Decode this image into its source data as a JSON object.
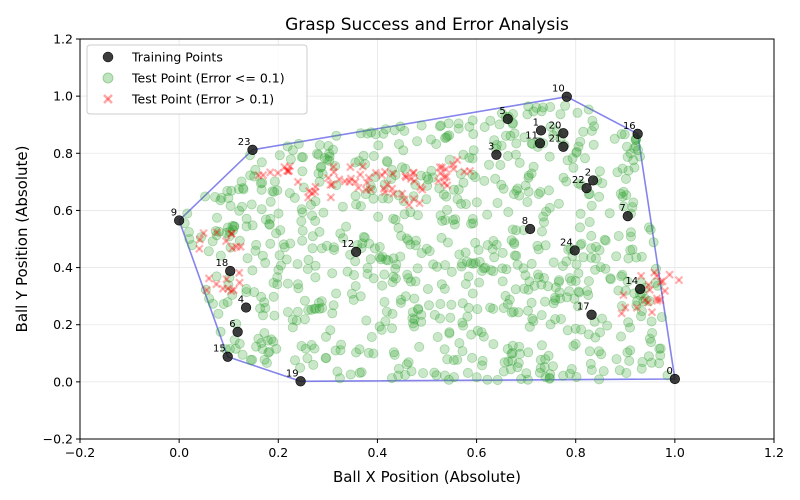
{
  "chart_data": {
    "type": "scatter",
    "title": "Grasp Success and Error Analysis",
    "xlabel": "Ball X Position (Absolute)",
    "ylabel": "Ball Y Position (Absolute)",
    "xlim": [
      -0.2,
      1.2
    ],
    "ylim": [
      -0.2,
      1.2
    ],
    "xticks": [
      "−0.2",
      "0.0",
      "0.2",
      "0.4",
      "0.6",
      "0.8",
      "1.0",
      "1.2"
    ],
    "yticks": [
      "−0.2",
      "0.0",
      "0.2",
      "0.4",
      "0.6",
      "0.8",
      "1.0",
      "1.2"
    ],
    "grid": true,
    "legend_position": "top-left",
    "legend": [
      {
        "label": "Training Points",
        "marker": "circle"
      },
      {
        "label": "Test Point (Error <= 0.1)",
        "marker": "circle"
      },
      {
        "label": "Test Point (Error > 0.1)",
        "marker": "x"
      }
    ],
    "colors": {
      "training": "#1a1a1a",
      "test_ok": "#2ca02c",
      "test_err": "#ff0000",
      "hull": "#1f1fdd"
    },
    "training_points": [
      {
        "id": "0",
        "x": 1.0,
        "y": 0.01
      },
      {
        "id": "1",
        "x": 0.73,
        "y": 0.88
      },
      {
        "id": "2",
        "x": 0.835,
        "y": 0.705
      },
      {
        "id": "3",
        "x": 0.64,
        "y": 0.795
      },
      {
        "id": "4",
        "x": 0.135,
        "y": 0.26
      },
      {
        "id": "5",
        "x": 0.663,
        "y": 0.92
      },
      {
        "id": "6",
        "x": 0.118,
        "y": 0.175
      },
      {
        "id": "7",
        "x": 0.905,
        "y": 0.58
      },
      {
        "id": "8",
        "x": 0.708,
        "y": 0.535
      },
      {
        "id": "9",
        "x": 0.0,
        "y": 0.565
      },
      {
        "id": "10",
        "x": 0.782,
        "y": 0.998
      },
      {
        "id": "11",
        "x": 0.728,
        "y": 0.835
      },
      {
        "id": "12",
        "x": 0.357,
        "y": 0.455
      },
      {
        "id": "14",
        "x": 0.93,
        "y": 0.325
      },
      {
        "id": "15",
        "x": 0.098,
        "y": 0.088
      },
      {
        "id": "16",
        "x": 0.925,
        "y": 0.868
      },
      {
        "id": "17",
        "x": 0.832,
        "y": 0.235
      },
      {
        "id": "18",
        "x": 0.103,
        "y": 0.388
      },
      {
        "id": "19",
        "x": 0.245,
        "y": 0.002
      },
      {
        "id": "20",
        "x": 0.775,
        "y": 0.87
      },
      {
        "id": "21",
        "x": 0.775,
        "y": 0.823
      },
      {
        "id": "22",
        "x": 0.822,
        "y": 0.678
      },
      {
        "id": "23",
        "x": 0.148,
        "y": 0.812
      },
      {
        "id": "24",
        "x": 0.798,
        "y": 0.46
      }
    ],
    "convex_hull_order": [
      "9",
      "23",
      "10",
      "16",
      "0",
      "19",
      "15",
      "9"
    ],
    "test_points_ok_region": "inside convex hull of training points; approx. 800 green points with error <= 0.1",
    "test_points_err_clusters": [
      {
        "x": 0.2,
        "y": 0.72
      },
      {
        "x": 0.3,
        "y": 0.68
      },
      {
        "x": 0.35,
        "y": 0.72
      },
      {
        "x": 0.4,
        "y": 0.7
      },
      {
        "x": 0.45,
        "y": 0.65
      },
      {
        "x": 0.5,
        "y": 0.7
      },
      {
        "x": 0.55,
        "y": 0.75
      },
      {
        "x": 0.08,
        "y": 0.5
      },
      {
        "x": 0.08,
        "y": 0.35
      },
      {
        "x": 0.93,
        "y": 0.27
      },
      {
        "x": 0.97,
        "y": 0.35
      }
    ]
  }
}
